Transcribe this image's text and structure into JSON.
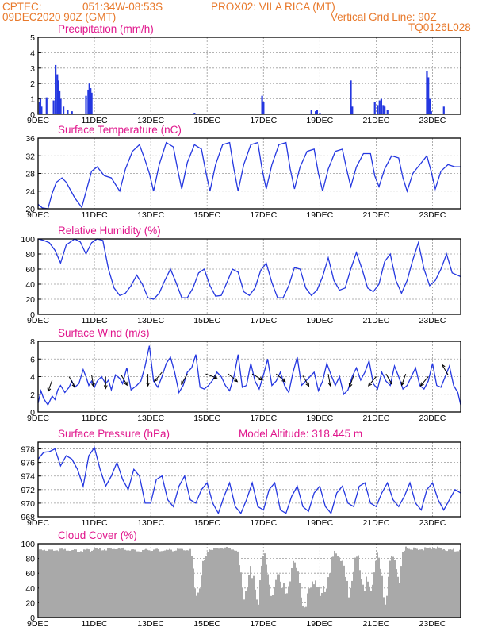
{
  "header": {
    "source": "CPTEC:",
    "coords": "051:34W-08:53S",
    "station": "PROX02: VILA RICA (MT)",
    "datetime": "09DEC2020 90Z (GMT)",
    "vertical_grid": "Vertical Grid Line: 90Z",
    "model_code": "TQ0126L028"
  },
  "colors": {
    "header": "#e8792b",
    "panel_title": "#e0168c",
    "series": "#2437e0",
    "bars_precip": "#2437e0",
    "cloud_bars": "#a9a9a9",
    "grid": "#9a9a9a"
  },
  "x_axis": {
    "start_day": 9,
    "end_day": 24,
    "ticks": [
      {
        "day": 9,
        "label": "9DEC"
      },
      {
        "day": 11,
        "label": "11DEC"
      },
      {
        "day": 13,
        "label": "13DEC"
      },
      {
        "day": 15,
        "label": "15DEC"
      },
      {
        "day": 17,
        "label": "17DEC"
      },
      {
        "day": 19,
        "label": "19DEC"
      },
      {
        "day": 21,
        "label": "21DEC"
      },
      {
        "day": 23,
        "label": "23DEC"
      }
    ]
  },
  "chart_data": [
    {
      "id": "precip",
      "type": "bar",
      "title": "Precipitation (mm/h)",
      "ylim": [
        0,
        5
      ],
      "yticks": [
        "0",
        "1",
        "2",
        "3",
        "4",
        "5"
      ],
      "x": [
        9.05,
        9.08,
        9.12,
        9.3,
        9.55,
        9.62,
        9.68,
        9.72,
        9.76,
        9.8,
        9.9,
        10.05,
        10.2,
        10.7,
        10.78,
        10.82,
        10.86,
        10.9,
        14.55,
        16.95,
        17.0,
        18.7,
        18.85,
        18.9,
        19.0,
        20.1,
        20.15,
        20.95,
        21.05,
        21.12,
        21.18,
        21.25,
        21.3,
        21.4,
        22.8,
        22.85,
        22.9,
        22.95,
        23.4
      ],
      "values": [
        0.8,
        1.0,
        0.5,
        1.1,
        0.9,
        3.2,
        2.6,
        2.2,
        1.5,
        1.0,
        0.5,
        0.3,
        0.2,
        1.2,
        1.6,
        2.0,
        1.7,
        1.4,
        0.1,
        1.2,
        0.8,
        0.3,
        0.2,
        0.3,
        0.1,
        2.2,
        0.5,
        0.8,
        0.6,
        0.9,
        1.0,
        0.6,
        0.5,
        0.3,
        2.8,
        2.4,
        1.0,
        0.2,
        0.5
      ]
    },
    {
      "id": "temp",
      "type": "line",
      "title": "Surface Temperature (nC)",
      "ylim": [
        20,
        36
      ],
      "yticks": [
        "20",
        "24",
        "28",
        "32",
        "36"
      ],
      "x": [
        9.0,
        9.15,
        9.35,
        9.5,
        9.65,
        9.85,
        10.0,
        10.3,
        10.55,
        10.75,
        10.9,
        11.1,
        11.35,
        11.6,
        11.9,
        12.1,
        12.35,
        12.6,
        12.8,
        12.95,
        13.1,
        13.3,
        13.55,
        13.8,
        13.95,
        14.1,
        14.3,
        14.55,
        14.8,
        14.95,
        15.1,
        15.3,
        15.55,
        15.8,
        15.95,
        16.1,
        16.3,
        16.55,
        16.8,
        16.95,
        17.1,
        17.3,
        17.55,
        17.8,
        17.95,
        18.1,
        18.3,
        18.55,
        18.8,
        18.95,
        19.1,
        19.3,
        19.55,
        19.8,
        19.95,
        20.1,
        20.3,
        20.55,
        20.8,
        20.95,
        21.1,
        21.3,
        21.55,
        21.8,
        21.95,
        22.1,
        22.3,
        22.55,
        22.8,
        22.95,
        23.1,
        23.3,
        23.55,
        23.8,
        24.0
      ],
      "values": [
        21.0,
        20.2,
        20.0,
        23.5,
        26.0,
        27.0,
        26.0,
        22.5,
        20.3,
        25.0,
        28.5,
        29.5,
        27.5,
        27.0,
        24.0,
        29.0,
        33.0,
        34.5,
        31.0,
        28.0,
        24.0,
        30.0,
        35.0,
        34.0,
        29.0,
        24.5,
        30.5,
        34.5,
        33.5,
        28.5,
        24.0,
        30.0,
        34.5,
        35.0,
        29.0,
        24.0,
        30.0,
        34.5,
        35.0,
        29.0,
        24.5,
        30.0,
        34.5,
        35.0,
        29.0,
        24.5,
        29.5,
        33.0,
        33.5,
        28.0,
        24.0,
        29.0,
        33.0,
        33.5,
        29.0,
        25.0,
        29.5,
        32.5,
        32.5,
        27.5,
        25.0,
        29.0,
        32.0,
        31.5,
        27.0,
        24.0,
        28.0,
        30.0,
        32.0,
        28.5,
        24.5,
        28.5,
        30.0,
        29.5,
        29.5
      ]
    },
    {
      "id": "rh",
      "type": "line",
      "title": "Relative Humidity (%)",
      "ylim": [
        0,
        100
      ],
      "yticks": [
        "0",
        "20",
        "40",
        "60",
        "80",
        "100"
      ],
      "x": [
        9.0,
        9.2,
        9.4,
        9.6,
        9.8,
        10.0,
        10.3,
        10.5,
        10.7,
        10.9,
        11.1,
        11.3,
        11.5,
        11.7,
        11.9,
        12.1,
        12.3,
        12.5,
        12.7,
        12.9,
        13.1,
        13.3,
        13.5,
        13.7,
        13.9,
        14.1,
        14.3,
        14.5,
        14.7,
        14.9,
        15.1,
        15.3,
        15.5,
        15.7,
        15.9,
        16.1,
        16.3,
        16.5,
        16.7,
        16.9,
        17.1,
        17.3,
        17.5,
        17.7,
        17.9,
        18.1,
        18.3,
        18.5,
        18.7,
        18.9,
        19.1,
        19.3,
        19.5,
        19.7,
        19.9,
        20.1,
        20.3,
        20.5,
        20.7,
        20.9,
        21.1,
        21.3,
        21.5,
        21.7,
        21.9,
        22.1,
        22.3,
        22.5,
        22.7,
        22.9,
        23.1,
        23.3,
        23.5,
        23.7,
        24.0
      ],
      "values": [
        100,
        98,
        95,
        85,
        68,
        92,
        100,
        96,
        80,
        95,
        100,
        98,
        60,
        35,
        25,
        28,
        38,
        52,
        40,
        22,
        20,
        28,
        45,
        60,
        42,
        22,
        22,
        35,
        55,
        60,
        38,
        24,
        25,
        42,
        60,
        56,
        30,
        25,
        35,
        58,
        68,
        42,
        22,
        22,
        38,
        62,
        60,
        35,
        25,
        32,
        50,
        75,
        45,
        32,
        35,
        60,
        82,
        60,
        35,
        30,
        40,
        70,
        80,
        45,
        28,
        45,
        72,
        95,
        60,
        38,
        45,
        60,
        80,
        55,
        50
      ]
    },
    {
      "id": "wind",
      "type": "line",
      "title": "Surface Wind (m/s)",
      "ylim": [
        0,
        8
      ],
      "yticks": [
        "0",
        "2",
        "4",
        "6",
        "8"
      ],
      "x": [
        9.0,
        9.1,
        9.2,
        9.35,
        9.5,
        9.6,
        9.7,
        9.8,
        9.95,
        10.1,
        10.2,
        10.3,
        10.45,
        10.6,
        10.7,
        10.8,
        10.9,
        11.0,
        11.1,
        11.25,
        11.4,
        11.5,
        11.6,
        11.75,
        11.9,
        12.0,
        12.15,
        12.3,
        12.5,
        12.65,
        12.8,
        12.95,
        13.1,
        13.25,
        13.4,
        13.55,
        13.7,
        13.85,
        14.0,
        14.15,
        14.3,
        14.45,
        14.6,
        14.75,
        14.9,
        15.05,
        15.2,
        15.35,
        15.5,
        15.65,
        15.8,
        15.95,
        16.1,
        16.25,
        16.4,
        16.55,
        16.7,
        16.85,
        17.0,
        17.15,
        17.3,
        17.45,
        17.6,
        17.75,
        17.9,
        18.05,
        18.2,
        18.35,
        18.5,
        18.65,
        18.8,
        18.95,
        19.1,
        19.25,
        19.4,
        19.55,
        19.7,
        19.85,
        20.0,
        20.15,
        20.3,
        20.45,
        20.6,
        20.75,
        20.9,
        21.05,
        21.2,
        21.35,
        21.5,
        21.65,
        21.8,
        21.95,
        22.1,
        22.25,
        22.4,
        22.55,
        22.7,
        22.85,
        23.0,
        23.15,
        23.3,
        23.45,
        23.6,
        23.75,
        23.9,
        24.0
      ],
      "values": [
        1.0,
        2.4,
        1.5,
        0.8,
        1.8,
        1.4,
        2.5,
        3.0,
        2.2,
        2.8,
        3.5,
        2.8,
        3.2,
        4.8,
        4.0,
        3.0,
        3.5,
        2.8,
        3.5,
        4.0,
        3.2,
        3.6,
        2.5,
        4.2,
        3.8,
        3.2,
        5.0,
        2.5,
        3.0,
        3.5,
        5.2,
        7.5,
        3.5,
        2.8,
        4.0,
        5.5,
        6.2,
        4.5,
        2.2,
        3.0,
        4.5,
        5.0,
        6.5,
        2.8,
        2.6,
        3.0,
        3.6,
        4.5,
        4.0,
        3.0,
        2.4,
        4.0,
        6.5,
        2.8,
        3.0,
        5.5,
        3.5,
        2.6,
        4.2,
        6.0,
        3.0,
        3.5,
        4.5,
        3.0,
        2.2,
        4.5,
        6.2,
        3.0,
        3.5,
        4.0,
        4.5,
        2.4,
        3.5,
        5.5,
        4.2,
        3.0,
        4.0,
        2.0,
        2.5,
        4.0,
        5.0,
        3.6,
        4.5,
        5.8,
        3.2,
        2.6,
        4.5,
        3.5,
        3.0,
        5.2,
        4.0,
        2.6,
        3.0,
        4.0,
        5.0,
        3.0,
        2.6,
        3.5,
        5.5,
        3.0,
        2.8,
        4.0,
        5.2,
        3.0,
        2.2,
        0.8
      ],
      "arrows": [
        {
          "day": 9.5,
          "speed": 3.6,
          "dir_deg": 250
        },
        {
          "day": 10.1,
          "speed": 4.0,
          "dir_deg": 300
        },
        {
          "day": 10.9,
          "speed": 4.2,
          "dir_deg": 280
        },
        {
          "day": 11.4,
          "speed": 4.0,
          "dir_deg": 270
        },
        {
          "day": 11.95,
          "speed": 4.2,
          "dir_deg": 300
        },
        {
          "day": 12.9,
          "speed": 4.3,
          "dir_deg": 270
        },
        {
          "day": 13.4,
          "speed": 4.5,
          "dir_deg": 230
        },
        {
          "day": 14.3,
          "speed": 4.3,
          "dir_deg": 240
        },
        {
          "day": 14.95,
          "speed": 4.3,
          "dir_deg": 340
        },
        {
          "day": 15.75,
          "speed": 4.3,
          "dir_deg": 320
        },
        {
          "day": 16.6,
          "speed": 4.3,
          "dir_deg": 330
        },
        {
          "day": 17.45,
          "speed": 4.3,
          "dir_deg": 320
        },
        {
          "day": 18.4,
          "speed": 4.1,
          "dir_deg": 300
        },
        {
          "day": 19.3,
          "speed": 4.3,
          "dir_deg": 280
        },
        {
          "day": 20.2,
          "speed": 4.1,
          "dir_deg": 250
        },
        {
          "day": 21.0,
          "speed": 4.0,
          "dir_deg": 230
        },
        {
          "day": 21.35,
          "speed": 4.3,
          "dir_deg": 300
        },
        {
          "day": 22.05,
          "speed": 4.3,
          "dir_deg": 250
        },
        {
          "day": 22.85,
          "speed": 4.0,
          "dir_deg": 230
        },
        {
          "day": 23.55,
          "speed": 4.2,
          "dir_deg": 120
        }
      ]
    },
    {
      "id": "pressure",
      "type": "line",
      "title": "Surface Pressure (hPa)",
      "ylim": [
        968,
        979
      ],
      "yticks": [
        "968",
        "970",
        "972",
        "974",
        "976",
        "978"
      ],
      "x": [
        9.0,
        9.2,
        9.4,
        9.6,
        9.8,
        10.0,
        10.2,
        10.4,
        10.6,
        10.8,
        11.0,
        11.2,
        11.4,
        11.6,
        11.8,
        12.0,
        12.2,
        12.4,
        12.6,
        12.8,
        13.0,
        13.2,
        13.4,
        13.6,
        13.8,
        14.0,
        14.2,
        14.4,
        14.6,
        14.8,
        15.0,
        15.2,
        15.4,
        15.6,
        15.8,
        16.0,
        16.2,
        16.4,
        16.6,
        16.8,
        17.0,
        17.2,
        17.4,
        17.6,
        17.8,
        18.0,
        18.2,
        18.4,
        18.6,
        18.8,
        19.0,
        19.2,
        19.4,
        19.6,
        19.8,
        20.0,
        20.2,
        20.4,
        20.6,
        20.8,
        21.0,
        21.2,
        21.4,
        21.6,
        21.8,
        22.0,
        22.2,
        22.4,
        22.6,
        22.8,
        23.0,
        23.2,
        23.4,
        23.6,
        23.8,
        24.0
      ],
      "values": [
        976.5,
        977.5,
        977.6,
        978.0,
        975.5,
        977.0,
        976.5,
        975.0,
        972.5,
        977.0,
        978.2,
        975.0,
        972.5,
        974.0,
        976.0,
        973.5,
        972.0,
        975.0,
        974.0,
        970.0,
        970.0,
        973.5,
        974.0,
        970.5,
        969.5,
        972.5,
        974.0,
        970.5,
        970.0,
        972.0,
        973.0,
        970.0,
        968.5,
        971.0,
        973.0,
        969.5,
        968.5,
        970.5,
        973.0,
        969.5,
        969.0,
        972.0,
        973.0,
        969.0,
        968.5,
        971.0,
        972.5,
        969.5,
        968.8,
        971.5,
        972.5,
        969.5,
        968.5,
        971.5,
        972.5,
        970.0,
        969.5,
        972.5,
        973.0,
        970.0,
        969.5,
        971.5,
        973.0,
        970.5,
        969.5,
        971.0,
        973.0,
        970.0,
        969.0,
        972.0,
        973.0,
        970.5,
        969.0,
        970.5,
        972.0,
        971.5
      ]
    },
    {
      "id": "cloud",
      "type": "bar",
      "title": "Cloud Cover (%)",
      "ylim": [
        0,
        100
      ],
      "yticks": [
        "0",
        "20",
        "40",
        "60",
        "80",
        "100"
      ],
      "x": [
        9.0,
        9.5,
        10.0,
        10.5,
        11.0,
        11.5,
        12.0,
        12.5,
        13.0,
        13.5,
        14.0,
        14.4,
        14.6,
        15.0,
        15.5,
        16.0,
        16.3,
        16.5,
        16.8,
        17.0,
        17.3,
        17.5,
        17.8,
        18.0,
        18.3,
        18.5,
        18.8,
        19.0,
        19.3,
        19.5,
        19.8,
        20.0,
        20.3,
        20.5,
        20.8,
        21.0,
        21.3,
        21.5,
        21.8,
        22.0,
        22.5,
        23.0,
        23.5,
        24.0
      ],
      "values": [
        92,
        92,
        92,
        90,
        92,
        93,
        93,
        90,
        92,
        91,
        92,
        92,
        30,
        92,
        95,
        92,
        30,
        60,
        25,
        90,
        20,
        70,
        20,
        85,
        35,
        15,
        60,
        20,
        60,
        90,
        75,
        30,
        85,
        50,
        35,
        90,
        20,
        85,
        55,
        95,
        92,
        95,
        92,
        90
      ]
    }
  ],
  "panels": {
    "temp_title": "Surface Temperature (nC)",
    "model_altitude": "Model Altitude: 318.445 m"
  }
}
